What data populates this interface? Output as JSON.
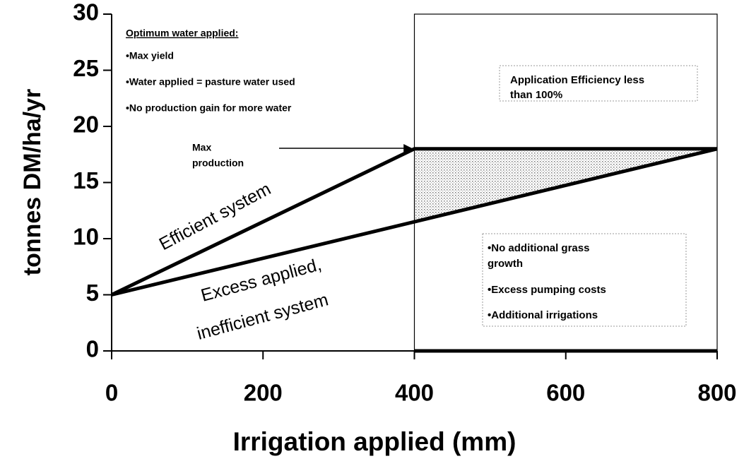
{
  "chart_data": {
    "type": "line",
    "xlabel": "Irrigation applied (mm)",
    "ylabel": "tonnes DM/ha/yr",
    "xlim": [
      0,
      800
    ],
    "ylim": [
      0,
      30
    ],
    "xticks": [
      0,
      200,
      400,
      600,
      800
    ],
    "yticks": [
      0,
      5,
      10,
      15,
      20,
      25,
      30
    ],
    "reference_x": 400,
    "series": [
      {
        "name": "Efficient system",
        "color": "#000000",
        "x": [
          0,
          400,
          800
        ],
        "values": [
          5,
          18,
          18
        ]
      },
      {
        "name": "Excess applied, inefficient system",
        "color": "#000000",
        "x": [
          0,
          800
        ],
        "values": [
          5,
          18
        ]
      }
    ],
    "annotations": [
      {
        "title": "Optimum water applied:",
        "lines": [
          "•Max yield",
          "•Water applied = pasture water used",
          "•No production gain for more water"
        ]
      },
      {
        "lines": [
          "Max",
          "production"
        ]
      },
      {
        "lines": [
          "Application Efficiency less",
          "than 100%"
        ]
      },
      {
        "lines": [
          "•No additional grass",
          "growth",
          "•Excess pumping costs",
          "•Additional irrigations"
        ]
      }
    ]
  }
}
